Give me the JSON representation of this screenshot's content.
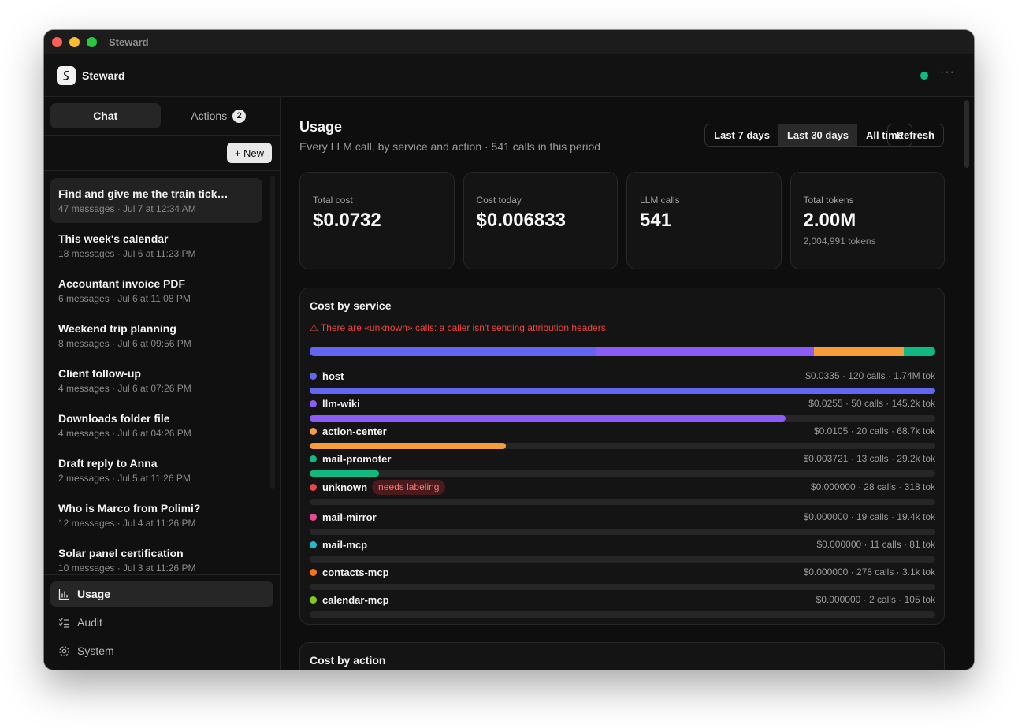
{
  "window": {
    "title": "Steward"
  },
  "header": {
    "app_name": "Steward",
    "more": "···"
  },
  "sidebar": {
    "tabs": [
      {
        "label": "Chat",
        "active": true
      },
      {
        "label": "Actions",
        "badge": "2"
      }
    ],
    "new_label": "+ New",
    "conversations": [
      {
        "title": "Find and give me the train tick…",
        "meta": "47 messages · Jul 7 at 12:34 AM"
      },
      {
        "title": "This week's calendar",
        "meta": "18 messages · Jul 6 at 11:23 PM"
      },
      {
        "title": "Accountant invoice PDF",
        "meta": "6 messages · Jul 6 at 11:08 PM"
      },
      {
        "title": "Weekend trip planning",
        "meta": "8 messages · Jul 6 at 09:56 PM"
      },
      {
        "title": "Client follow-up",
        "meta": "4 messages · Jul 6 at 07:26 PM"
      },
      {
        "title": "Downloads folder file",
        "meta": "4 messages · Jul 6 at 04:26 PM"
      },
      {
        "title": "Draft reply to Anna",
        "meta": "2 messages · Jul 5 at 11:26 PM"
      },
      {
        "title": "Who is Marco from Polimi?",
        "meta": "12 messages · Jul 4 at 11:26 PM"
      },
      {
        "title": "Solar panel certification",
        "meta": "10 messages · Jul 3 at 11:26 PM"
      }
    ],
    "nav": [
      {
        "label": "Usage",
        "icon": "bar-chart-icon"
      },
      {
        "label": "Audit",
        "icon": "checklist-icon"
      },
      {
        "label": "System",
        "icon": "gear-icon"
      }
    ]
  },
  "main": {
    "title": "Usage",
    "subtitle": "Every LLM call, by service and action · 541 calls in this period",
    "ranges": [
      "Last 7 days",
      "Last 30 days",
      "All time"
    ],
    "active_range": "Last 30 days",
    "refresh_label": "Refresh",
    "stats": [
      {
        "label": "Total cost",
        "value": "$0.0732",
        "sub": ""
      },
      {
        "label": "Cost today",
        "value": "$0.006833",
        "sub": ""
      },
      {
        "label": "LLM calls",
        "value": "541",
        "sub": ""
      },
      {
        "label": "Total tokens",
        "value": "2.00M",
        "sub": "2,004,991 tokens"
      }
    ],
    "cost_by_service": {
      "title": "Cost by service",
      "warning": "⚠ There are «unknown» calls: a caller isn't sending attribution headers.",
      "services": [
        {
          "name": "host",
          "cost": 0.0335,
          "stats": "$0.0335 · 120 calls · 1.74M tok",
          "color": "#6366f1",
          "tag": ""
        },
        {
          "name": "llm-wiki",
          "cost": 0.0255,
          "stats": "$0.0255 · 50 calls · 145.2k tok",
          "color": "#8b5cf6",
          "tag": ""
        },
        {
          "name": "action-center",
          "cost": 0.0105,
          "stats": "$0.0105 · 20 calls · 68.7k tok",
          "color": "#f59e3b",
          "tag": ""
        },
        {
          "name": "mail-promoter",
          "cost": 0.003721,
          "stats": "$0.003721 · 13 calls · 29.2k tok",
          "color": "#10b981",
          "tag": ""
        },
        {
          "name": "unknown",
          "cost": 0,
          "stats": "$0.000000 · 28 calls · 318 tok",
          "color": "#ef4444",
          "tag": "needs labeling"
        },
        {
          "name": "mail-mirror",
          "cost": 0,
          "stats": "$0.000000 · 19 calls · 19.4k tok",
          "color": "#ec4899",
          "tag": ""
        },
        {
          "name": "mail-mcp",
          "cost": 0,
          "stats": "$0.000000 · 11 calls · 81 tok",
          "color": "#22b8cf",
          "tag": ""
        },
        {
          "name": "contacts-mcp",
          "cost": 0,
          "stats": "$0.000000 · 278 calls · 3.1k tok",
          "color": "#f97316",
          "tag": ""
        },
        {
          "name": "calendar-mcp",
          "cost": 0,
          "stats": "$0.000000 · 2 calls · 105 tok",
          "color": "#84cc16",
          "tag": ""
        }
      ]
    },
    "cost_by_action": {
      "title": "Cost by action"
    }
  }
}
